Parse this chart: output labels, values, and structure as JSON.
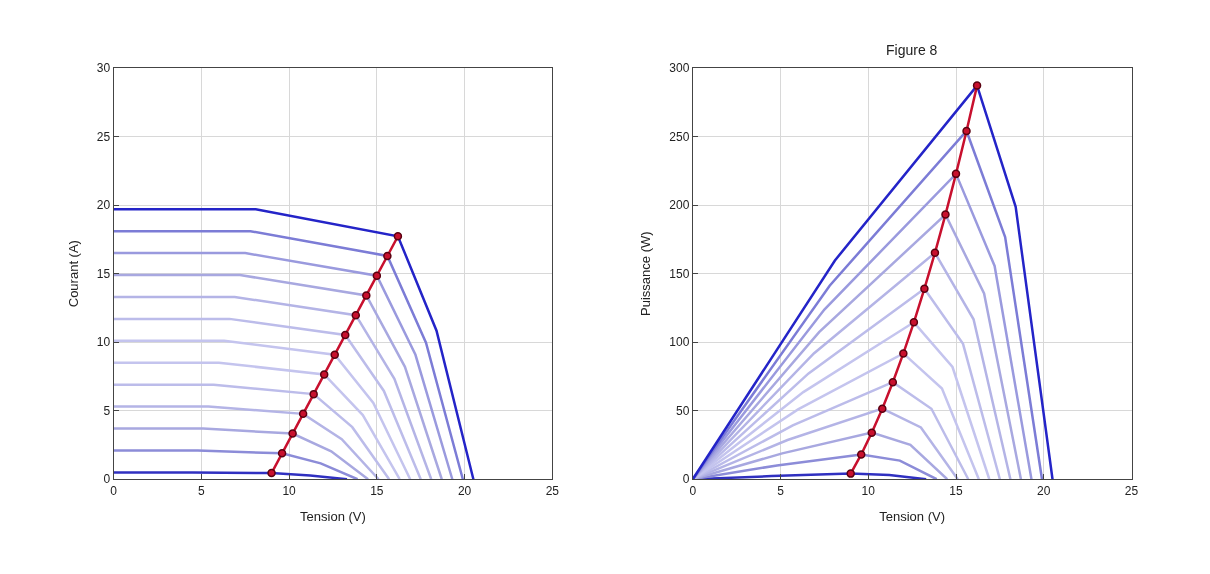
{
  "chart_data": [
    {
      "type": "line",
      "xlabel": "Tension (V)",
      "ylabel": "Courant (A)",
      "xlim": [
        0,
        25
      ],
      "xticks": [
        0,
        5,
        10,
        15,
        20,
        25
      ],
      "ylim": [
        0,
        30
      ],
      "yticks": [
        0,
        5,
        10,
        15,
        20,
        25,
        30
      ],
      "grid": true,
      "marker": "none",
      "line_style": "solid",
      "series": [
        {
          "color": "#3030c0",
          "x": [
            0,
            4.5,
            9,
            11.2,
            13.3
          ],
          "values": [
            0.5,
            0.5,
            0.45,
            0.28,
            0
          ]
        },
        {
          "color": "#8c8cd8",
          "x": [
            0,
            4.8,
            9.6,
            11.8,
            13.9
          ],
          "values": [
            2.1,
            2.1,
            1.89,
            1.16,
            0
          ]
        },
        {
          "color": "#a8a8e0",
          "x": [
            0,
            5.1,
            10.2,
            12.4,
            14.5
          ],
          "values": [
            3.7,
            3.7,
            3.33,
            2.04,
            0
          ]
        },
        {
          "color": "#b4b4e6",
          "x": [
            0,
            5.4,
            10.8,
            13,
            15.1
          ],
          "values": [
            5.3,
            5.3,
            4.77,
            2.92,
            0
          ]
        },
        {
          "color": "#bcbcea",
          "x": [
            0,
            5.7,
            11.4,
            13.6,
            15.7
          ],
          "values": [
            6.9,
            6.9,
            6.21,
            3.8,
            0
          ]
        },
        {
          "color": "#c4c4ee",
          "x": [
            0,
            6,
            12,
            14.2,
            16.3
          ],
          "values": [
            8.5,
            8.5,
            7.65,
            4.68,
            0
          ]
        },
        {
          "color": "#c4c4ee",
          "x": [
            0,
            6.3,
            12.6,
            14.8,
            16.9
          ],
          "values": [
            10.1,
            10.1,
            9.09,
            5.56,
            0
          ]
        },
        {
          "color": "#bcbcea",
          "x": [
            0,
            6.6,
            13.2,
            15.4,
            17.5
          ],
          "values": [
            11.7,
            11.7,
            10.53,
            6.44,
            0
          ]
        },
        {
          "color": "#b4b4e6",
          "x": [
            0,
            6.9,
            13.8,
            16,
            18.1
          ],
          "values": [
            13.3,
            13.3,
            11.97,
            7.32,
            0
          ]
        },
        {
          "color": "#a8a8e0",
          "x": [
            0,
            7.2,
            14.4,
            16.6,
            18.7
          ],
          "values": [
            14.9,
            14.9,
            13.41,
            8.2,
            0
          ]
        },
        {
          "color": "#9a9ade",
          "x": [
            0,
            7.5,
            15,
            17.2,
            19.3
          ],
          "values": [
            16.5,
            16.5,
            14.85,
            9.08,
            0
          ]
        },
        {
          "color": "#7c7cd6",
          "x": [
            0,
            7.8,
            15.6,
            17.8,
            19.9
          ],
          "values": [
            18.1,
            18.1,
            16.29,
            9.96,
            0
          ]
        },
        {
          "color": "#2424c8",
          "x": [
            0,
            8.1,
            16.2,
            18.4,
            20.5
          ],
          "values": [
            19.7,
            19.7,
            17.73,
            10.84,
            0
          ]
        },
        {
          "color": "#c8102e",
          "marker": "circle",
          "x": [
            9,
            9.6,
            10.2,
            10.8,
            11.4,
            12,
            12.6,
            13.2,
            13.8,
            14.4,
            15,
            15.6,
            16.2
          ],
          "values": [
            0.45,
            1.89,
            3.33,
            4.77,
            6.21,
            7.65,
            9.09,
            10.53,
            11.97,
            13.41,
            14.85,
            16.29,
            17.73
          ]
        }
      ]
    },
    {
      "type": "line",
      "title": "Figure 8",
      "xlabel": "Tension (V)",
      "ylabel": "Puissance (W)",
      "xlim": [
        0,
        25
      ],
      "xticks": [
        0,
        5,
        10,
        15,
        20,
        25
      ],
      "ylim": [
        0,
        300
      ],
      "yticks": [
        0,
        50,
        100,
        150,
        200,
        250,
        300
      ],
      "grid": true,
      "marker": "none",
      "line_style": "solid",
      "series": [
        {
          "color": "#3030c0",
          "x": [
            0,
            4.5,
            9,
            11.2,
            13.3
          ],
          "values": [
            0,
            2.3,
            4.1,
            3.1,
            0
          ]
        },
        {
          "color": "#8c8cd8",
          "x": [
            0,
            4.8,
            9.6,
            11.8,
            13.9
          ],
          "values": [
            0,
            10.1,
            18.1,
            13.6,
            0
          ]
        },
        {
          "color": "#a8a8e0",
          "x": [
            0,
            5.1,
            10.2,
            12.4,
            14.5
          ],
          "values": [
            0,
            18.9,
            34,
            25.1,
            0
          ]
        },
        {
          "color": "#b4b4e6",
          "x": [
            0,
            5.4,
            10.8,
            13,
            15.1
          ],
          "values": [
            0,
            28.6,
            51.5,
            37.8,
            0
          ]
        },
        {
          "color": "#bcbcea",
          "x": [
            0,
            5.7,
            11.4,
            13.6,
            15.7
          ],
          "values": [
            0,
            39.3,
            70.8,
            51.4,
            0
          ]
        },
        {
          "color": "#c4c4ee",
          "x": [
            0,
            6,
            12,
            14.2,
            16.3
          ],
          "values": [
            0,
            51,
            91.8,
            66.2,
            0
          ]
        },
        {
          "color": "#c4c4ee",
          "x": [
            0,
            6.3,
            12.6,
            14.8,
            16.9
          ],
          "values": [
            0,
            63.6,
            114.5,
            81.9,
            0
          ]
        },
        {
          "color": "#bcbcea",
          "x": [
            0,
            6.6,
            13.2,
            15.4,
            17.5
          ],
          "values": [
            0,
            77.2,
            139,
            98.8,
            0
          ]
        },
        {
          "color": "#b4b4e6",
          "x": [
            0,
            6.9,
            13.8,
            16,
            18.1
          ],
          "values": [
            0,
            91.8,
            165.2,
            116.7,
            0
          ]
        },
        {
          "color": "#a8a8e0",
          "x": [
            0,
            7.2,
            14.4,
            16.6,
            18.7
          ],
          "values": [
            0,
            107.3,
            193.1,
            135.6,
            0
          ]
        },
        {
          "color": "#9a9ade",
          "x": [
            0,
            7.5,
            15,
            17.2,
            19.3
          ],
          "values": [
            0,
            123.8,
            222.8,
            155.6,
            0
          ]
        },
        {
          "color": "#7c7cd6",
          "x": [
            0,
            7.8,
            15.6,
            17.8,
            19.9
          ],
          "values": [
            0,
            141.2,
            254.1,
            176.7,
            0
          ]
        },
        {
          "color": "#2424c8",
          "x": [
            0,
            8.1,
            16.2,
            18.4,
            20.5
          ],
          "values": [
            0,
            159.6,
            287.2,
            198.8,
            0
          ]
        },
        {
          "color": "#c8102e",
          "marker": "circle",
          "x": [
            9,
            9.6,
            10.2,
            10.8,
            11.4,
            12,
            12.6,
            13.2,
            13.8,
            14.4,
            15,
            15.6,
            16.2
          ],
          "values": [
            4.1,
            18.1,
            34,
            51.5,
            70.8,
            91.8,
            114.5,
            139,
            165.2,
            193.1,
            222.8,
            254.1,
            287.2
          ]
        }
      ]
    }
  ]
}
